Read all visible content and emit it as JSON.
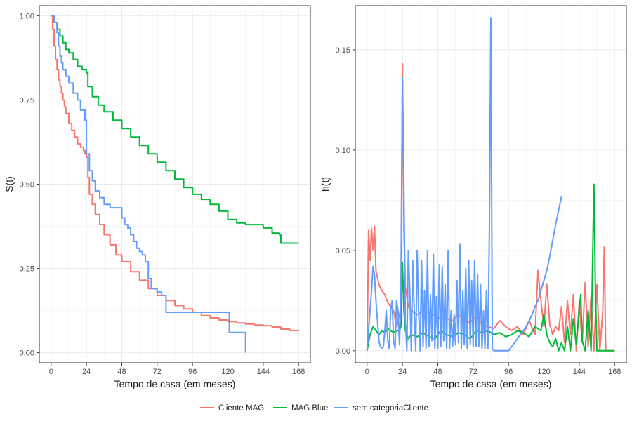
{
  "legend": {
    "entries": [
      {
        "label": "Cliente MAG",
        "color": "#F8766D"
      },
      {
        "label": "MAG Blue",
        "color": "#00BA38"
      },
      {
        "label": "sem categoriaCliente",
        "color": "#619CFF"
      }
    ]
  },
  "chart_data": [
    {
      "type": "line",
      "title": "",
      "xlabel": "Tempo de casa (em meses)",
      "ylabel": "S(t)",
      "xlim": [
        -8,
        176
      ],
      "ylim": [
        -0.03,
        1.03
      ],
      "x_ticks": [
        0,
        24,
        48,
        72,
        96,
        120,
        144,
        168
      ],
      "x_tick_labels": [
        "0",
        "24",
        "48",
        "72",
        "96",
        "120",
        "144",
        "168"
      ],
      "y_ticks": [
        0,
        0.25,
        0.5,
        0.75,
        1.0
      ],
      "y_tick_labels": [
        "0.00",
        "0.25",
        "0.50",
        "0.75",
        "1.00"
      ],
      "grid": true,
      "step": true,
      "series": [
        {
          "name": "Cliente MAG",
          "color": "#F8766D",
          "x": [
            0,
            1,
            2,
            3,
            4,
            5,
            6,
            7,
            8,
            9,
            10,
            12,
            14,
            16,
            18,
            20,
            22,
            23,
            24,
            25,
            26,
            28,
            30,
            33,
            36,
            40,
            44,
            48,
            54,
            60,
            66,
            72,
            78,
            84,
            90,
            96,
            102,
            108,
            114,
            120,
            126,
            132,
            138,
            144,
            150,
            156,
            162,
            168
          ],
          "y": [
            1.0,
            0.96,
            0.91,
            0.87,
            0.84,
            0.81,
            0.79,
            0.77,
            0.75,
            0.73,
            0.71,
            0.68,
            0.66,
            0.64,
            0.62,
            0.61,
            0.6,
            0.59,
            0.58,
            0.52,
            0.47,
            0.44,
            0.41,
            0.38,
            0.35,
            0.32,
            0.29,
            0.27,
            0.24,
            0.215,
            0.19,
            0.17,
            0.155,
            0.14,
            0.13,
            0.12,
            0.11,
            0.103,
            0.097,
            0.092,
            0.088,
            0.085,
            0.082,
            0.08,
            0.076,
            0.07,
            0.066,
            0.063
          ]
        },
        {
          "name": "MAG Blue",
          "color": "#00BA38",
          "x": [
            0,
            2,
            4,
            6,
            8,
            10,
            12,
            15,
            18,
            21,
            24,
            25,
            28,
            32,
            36,
            42,
            48,
            54,
            60,
            66,
            72,
            78,
            84,
            90,
            96,
            102,
            108,
            114,
            120,
            126,
            132,
            138,
            144,
            150,
            155,
            156,
            162,
            168
          ],
          "y": [
            1.0,
            0.98,
            0.96,
            0.94,
            0.92,
            0.9,
            0.89,
            0.87,
            0.85,
            0.84,
            0.83,
            0.79,
            0.76,
            0.735,
            0.715,
            0.69,
            0.665,
            0.64,
            0.615,
            0.59,
            0.565,
            0.54,
            0.515,
            0.49,
            0.47,
            0.455,
            0.44,
            0.42,
            0.395,
            0.385,
            0.38,
            0.38,
            0.37,
            0.355,
            0.35,
            0.325,
            0.325,
            0.325
          ]
        },
        {
          "name": "sem categoriaCliente",
          "color": "#619CFF",
          "x": [
            0,
            2,
            4,
            5,
            6,
            7,
            8,
            10,
            12,
            15,
            18,
            20,
            23,
            24,
            26,
            28,
            30,
            33,
            36,
            40,
            42,
            46,
            48,
            50,
            52,
            54,
            56,
            58,
            60,
            62,
            64,
            66,
            68,
            72,
            75,
            78,
            84,
            90,
            96,
            102,
            108,
            114,
            120,
            121,
            132
          ],
          "y": [
            1.0,
            0.98,
            0.95,
            0.91,
            0.88,
            0.86,
            0.84,
            0.82,
            0.8,
            0.77,
            0.75,
            0.72,
            0.69,
            0.59,
            0.54,
            0.51,
            0.48,
            0.46,
            0.44,
            0.43,
            0.43,
            0.43,
            0.4,
            0.38,
            0.37,
            0.35,
            0.33,
            0.31,
            0.3,
            0.29,
            0.27,
            0.22,
            0.19,
            0.18,
            0.17,
            0.12,
            0.12,
            0.12,
            0.12,
            0.12,
            0.12,
            0.12,
            0.12,
            0.06,
            0.0
          ]
        }
      ]
    },
    {
      "type": "line",
      "title": "",
      "xlabel": "Tempo de casa (em meses)",
      "ylabel": "h(t)",
      "xlim": [
        -8,
        176
      ],
      "ylim": [
        -0.006,
        0.172
      ],
      "x_ticks": [
        0,
        24,
        48,
        72,
        96,
        120,
        144,
        168
      ],
      "x_tick_labels": [
        "0",
        "24",
        "48",
        "72",
        "96",
        "120",
        "144",
        "168"
      ],
      "y_ticks": [
        0,
        0.05,
        0.1,
        0.15
      ],
      "y_tick_labels": [
        "0.00",
        "0.05",
        "0.10",
        "0.15"
      ],
      "grid": true,
      "step": false,
      "series": [
        {
          "name": "Cliente MAG",
          "color": "#F8766D",
          "x": [
            0,
            1,
            2,
            3,
            4,
            5,
            6,
            8,
            10,
            12,
            14,
            16,
            18,
            20,
            22,
            23,
            24,
            25,
            26,
            28,
            30,
            34,
            38,
            42,
            46,
            50,
            54,
            58,
            62,
            66,
            70,
            74,
            78,
            82,
            86,
            90,
            94,
            98,
            102,
            106,
            110,
            114,
            116,
            118,
            120,
            122,
            124,
            126,
            128,
            130,
            132,
            134,
            136,
            138,
            140,
            142,
            144,
            146,
            148,
            150,
            152,
            154,
            156,
            158,
            160,
            161,
            162,
            163,
            164,
            166,
            168
          ],
          "y": [
            0,
            0.06,
            0.045,
            0.061,
            0.05,
            0.062,
            0.04,
            0.033,
            0.03,
            0.028,
            0.024,
            0.022,
            0.02,
            0.012,
            0.018,
            0.022,
            0.143,
            0.06,
            0.032,
            0.022,
            0.02,
            0.018,
            0.02,
            0.019,
            0.017,
            0.016,
            0.016,
            0.015,
            0.018,
            0.015,
            0.014,
            0.017,
            0.013,
            0.012,
            0.011,
            0.015,
            0.012,
            0.01,
            0.012,
            0.008,
            0.015,
            0.008,
            0.04,
            0.025,
            0.012,
            0.033,
            0.013,
            0.008,
            0.012,
            0.01,
            0.022,
            0.004,
            0.025,
            0.008,
            0.028,
            0,
            0.024,
            0.004,
            0.034,
            0.002,
            0.027,
            0,
            0.033,
            0,
            0.02,
            0.052,
            0,
            0,
            0,
            0,
            0
          ]
        },
        {
          "name": "MAG Blue",
          "color": "#00BA38",
          "x": [
            0,
            2,
            4,
            6,
            8,
            10,
            12,
            14,
            16,
            18,
            20,
            22,
            23,
            24,
            25,
            26,
            28,
            30,
            34,
            38,
            42,
            46,
            50,
            54,
            58,
            62,
            66,
            70,
            74,
            78,
            82,
            86,
            90,
            94,
            98,
            102,
            106,
            110,
            114,
            118,
            120,
            122,
            124,
            126,
            128,
            130,
            132,
            134,
            136,
            138,
            140,
            142,
            144,
            145,
            146,
            148,
            150,
            152,
            154,
            155,
            156,
            158,
            160,
            162,
            164,
            166,
            168
          ],
          "y": [
            0,
            0.008,
            0.012,
            0.01,
            0.008,
            0.01,
            0.009,
            0.011,
            0.01,
            0.009,
            0.01,
            0.01,
            0.012,
            0.044,
            0.02,
            0.01,
            0.006,
            0.008,
            0.007,
            0.009,
            0.007,
            0.006,
            0.01,
            0.008,
            0.007,
            0.009,
            0.008,
            0.006,
            0.01,
            0.009,
            0.01,
            0.008,
            0.009,
            0.007,
            0.008,
            0.01,
            0.009,
            0.007,
            0.012,
            0.01,
            0.018,
            0.008,
            0.004,
            0.002,
            0.006,
            0,
            0.004,
            0,
            0.012,
            0,
            0.016,
            0.003,
            0.021,
            0.028,
            0.005,
            0,
            0.02,
            0,
            0.083,
            0.03,
            0,
            0,
            0,
            0,
            0,
            0,
            0
          ]
        },
        {
          "name": "sem categoriaCliente",
          "color": "#619CFF",
          "x": [
            0,
            2,
            3,
            4,
            5,
            6,
            7,
            8,
            9,
            10,
            11,
            12,
            13,
            14,
            15,
            16,
            17,
            18,
            19,
            20,
            21,
            22,
            23,
            24,
            25,
            26,
            27,
            28,
            29,
            30,
            31,
            32,
            33,
            34,
            35,
            36,
            37,
            38,
            39,
            40,
            41,
            42,
            43,
            44,
            45,
            46,
            47,
            48,
            49,
            50,
            51,
            52,
            53,
            54,
            55,
            56,
            57,
            58,
            59,
            60,
            61,
            62,
            63,
            64,
            65,
            66,
            67,
            68,
            69,
            70,
            71,
            72,
            73,
            74,
            75,
            76,
            77,
            78,
            79,
            80,
            81,
            82,
            83,
            84,
            85,
            86,
            88,
            90,
            92,
            94,
            96,
            98,
            100,
            102,
            104,
            106,
            108,
            110,
            112,
            114,
            116,
            118,
            120,
            122,
            124,
            126,
            128,
            130,
            132
          ],
          "y": [
            0,
            0.02,
            0.03,
            0.042,
            0.038,
            0.025,
            0.015,
            0.005,
            0.002,
            0.001,
            0.002,
            0.01,
            0.02,
            0.005,
            0.001,
            0.02,
            0.025,
            0.005,
            0.001,
            0.025,
            0.02,
            0.003,
            0.03,
            0.136,
            0.08,
            0.015,
            0,
            0.05,
            0.03,
            0,
            0.045,
            0.02,
            0,
            0.05,
            0.02,
            0,
            0.045,
            0.002,
            0.03,
            0.001,
            0.05,
            0.002,
            0.028,
            0.005,
            0.048,
            0.001,
            0.027,
            0.001,
            0.043,
            0.002,
            0.042,
            0.005,
            0.033,
            0.001,
            0.05,
            0.001,
            0.02,
            0.002,
            0.018,
            0.003,
            0.035,
            0.004,
            0.053,
            0.001,
            0.03,
            0.003,
            0.041,
            0.001,
            0.045,
            0.003,
            0.035,
            0.002,
            0.045,
            0.002,
            0.038,
            0.002,
            0.033,
            0.001,
            0.02,
            0.001,
            0.03,
            0.001,
            0.06,
            0.166,
            0.001,
            0,
            0,
            0,
            0,
            0,
            0,
            0.002,
            0.004,
            0.006,
            0.008,
            0.01,
            0.012,
            0.015,
            0.018,
            0.022,
            0.025,
            0.03,
            0.035,
            0.04,
            0.047,
            0.055,
            0.063,
            0.07,
            0.077
          ]
        }
      ]
    }
  ]
}
